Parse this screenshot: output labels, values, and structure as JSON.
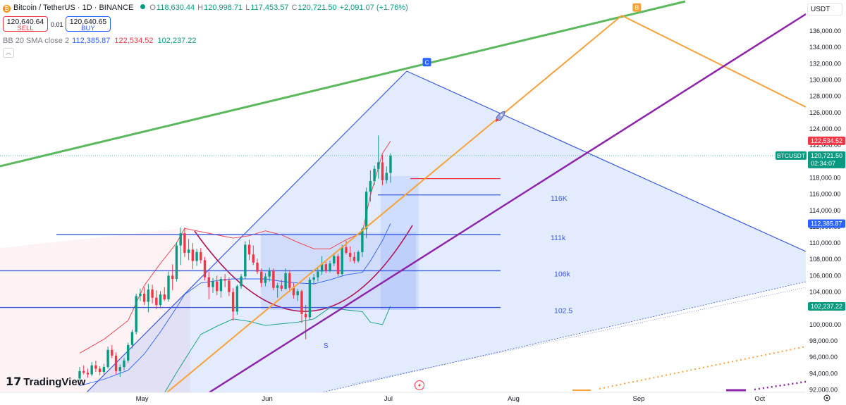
{
  "header": {
    "symbol": "Bitcoin / TetherUS · 1D · BINANCE",
    "coin_glyph": "₿",
    "o_label": "O",
    "o_value": "118,630.44",
    "h_label": "H",
    "h_value": "120,998.71",
    "l_label": "L",
    "l_value": "117,453.57",
    "c_label": "C",
    "c_value": "120,721.50",
    "change": "+2,091.07 (+1.76%)"
  },
  "trade": {
    "sell_price": "120,640.64",
    "sell_label": "SELL",
    "spread": "0.01",
    "buy_price": "120,640.65",
    "buy_label": "BUY"
  },
  "indicator": {
    "name": "BB 20 SMA close 2",
    "basis": "112,385.87",
    "upper": "122,534.52",
    "lower": "102,237.22"
  },
  "currency": "USDT",
  "brand": "TradingView",
  "colors": {
    "up": "#089981",
    "down": "#f23645",
    "blue": "#2962ff",
    "green": "#5cb85c",
    "orange": "#f7a23b",
    "purple": "#8e24aa",
    "navy": "#3b5bdb"
  },
  "chart_data": {
    "type": "candlestick",
    "timeframe": "1D",
    "x_ticks": [
      {
        "label": "May",
        "date": "2025-05-01"
      },
      {
        "label": "Jun",
        "date": "2025-06-01"
      },
      {
        "label": "Jul",
        "date": "2025-07-01"
      },
      {
        "label": "Aug",
        "date": "2025-08-01"
      },
      {
        "label": "Sep",
        "date": "2025-09-01"
      },
      {
        "label": "Oct",
        "date": "2025-10-01"
      }
    ],
    "y_ticks": [
      "92,000.00",
      "94,000.00",
      "96,000.00",
      "98,000.00",
      "100,000.00",
      "102,000.00",
      "104,000.00",
      "106,000.00",
      "108,000.00",
      "110,000.00",
      "112,000.00",
      "114,000.00",
      "116,000.00",
      "118,000.00",
      "120,000.00",
      "122,000.00",
      "124,000.00",
      "126,000.00",
      "128,000.00",
      "130,000.00",
      "132,000.00",
      "134,000.00",
      "136,000.00"
    ],
    "y_range": [
      91700,
      139800
    ],
    "price_labels": [
      {
        "text": "122,534.52",
        "price": 122534.52,
        "color": "#f23645"
      },
      {
        "text": "112,385.87",
        "price": 112385.87,
        "color": "#2962ff"
      },
      {
        "text": "102,237.22",
        "price": 102237.22,
        "color": "#089981"
      }
    ],
    "last_price": {
      "symbol": "BTCUSDT",
      "price_text": "120,721.50",
      "price": 120721.5,
      "countdown": "02:34:07"
    },
    "candles_date_range": [
      "2025-04-22",
      "2025-07-15"
    ],
    "candles": [
      [
        93400,
        94800,
        93100,
        94300
      ],
      [
        94300,
        95000,
        93900,
        94100
      ],
      [
        94100,
        94600,
        93500,
        93900
      ],
      [
        93900,
        95400,
        93700,
        95000
      ],
      [
        95000,
        95600,
        94200,
        94600
      ],
      [
        94600,
        94900,
        93800,
        94200
      ],
      [
        94200,
        95200,
        93900,
        94800
      ],
      [
        94800,
        97300,
        94600,
        96900
      ],
      [
        96900,
        97500,
        95900,
        96200
      ],
      [
        96200,
        96600,
        93900,
        94300
      ],
      [
        94300,
        95100,
        93600,
        94800
      ],
      [
        94800,
        95900,
        94400,
        95600
      ],
      [
        95600,
        97800,
        95300,
        97500
      ],
      [
        97500,
        99400,
        97100,
        99100
      ],
      [
        99100,
        103800,
        98800,
        103500
      ],
      [
        103500,
        104400,
        102900,
        103800
      ],
      [
        103800,
        104600,
        102400,
        102800
      ],
      [
        102800,
        105000,
        101500,
        104300
      ],
      [
        104300,
        104900,
        102600,
        103300
      ],
      [
        103300,
        104200,
        101900,
        102400
      ],
      [
        102400,
        104100,
        102000,
        103700
      ],
      [
        103700,
        104600,
        102900,
        103100
      ],
      [
        103100,
        106500,
        102800,
        106000
      ],
      [
        106000,
        107400,
        104200,
        105600
      ],
      [
        105600,
        110100,
        105300,
        109700
      ],
      [
        109700,
        111900,
        107300,
        111200
      ],
      [
        111200,
        111900,
        108300,
        108800
      ],
      [
        108800,
        110500,
        107900,
        109200
      ],
      [
        109200,
        110000,
        106800,
        107800
      ],
      [
        107800,
        109300,
        107200,
        108900
      ],
      [
        108900,
        109400,
        107500,
        107900
      ],
      [
        107900,
        108300,
        105400,
        105800
      ],
      [
        105800,
        106500,
        103100,
        104600
      ],
      [
        104600,
        105700,
        103900,
        105300
      ],
      [
        105300,
        106000,
        103600,
        104100
      ],
      [
        104100,
        105900,
        103300,
        105600
      ],
      [
        105600,
        106200,
        104600,
        105400
      ],
      [
        105400,
        105800,
        103500,
        104000
      ],
      [
        104000,
        104500,
        100500,
        101600
      ],
      [
        101600,
        104900,
        101200,
        104700
      ],
      [
        104700,
        106200,
        104400,
        105900
      ],
      [
        105900,
        110200,
        105600,
        109800
      ],
      [
        109800,
        110400,
        107900,
        108600
      ],
      [
        108600,
        109700,
        107300,
        107600
      ],
      [
        107600,
        108100,
        106200,
        106500
      ],
      [
        106500,
        106900,
        104600,
        105100
      ],
      [
        105100,
        106300,
        104700,
        105900
      ],
      [
        105900,
        107000,
        105300,
        106600
      ],
      [
        106600,
        106900,
        104200,
        104500
      ],
      [
        104500,
        105100,
        103300,
        104800
      ],
      [
        104800,
        105500,
        104100,
        104400
      ],
      [
        104400,
        106900,
        104300,
        106300
      ],
      [
        106300,
        106700,
        104000,
        104500
      ],
      [
        104500,
        105100,
        103200,
        103600
      ],
      [
        103600,
        104400,
        102900,
        104100
      ],
      [
        104100,
        104300,
        100200,
        101300
      ],
      [
        101300,
        102400,
        98200,
        100900
      ],
      [
        100900,
        105800,
        100600,
        105500
      ],
      [
        105500,
        106200,
        104900,
        105800
      ],
      [
        105800,
        106900,
        105300,
        106500
      ],
      [
        106500,
        108400,
        106100,
        107400
      ],
      [
        107400,
        107700,
        106300,
        106600
      ],
      [
        106600,
        107800,
        106400,
        107500
      ],
      [
        107500,
        108800,
        107200,
        108400
      ],
      [
        108400,
        108700,
        105900,
        106200
      ],
      [
        106200,
        109800,
        106000,
        109500
      ],
      [
        109500,
        110300,
        108600,
        108800
      ],
      [
        108800,
        109600,
        107700,
        108300
      ],
      [
        108300,
        108900,
        107500,
        107800
      ],
      [
        107800,
        109100,
        107600,
        108900
      ],
      [
        108900,
        111900,
        108300,
        111700
      ],
      [
        111700,
        116800,
        110600,
        116300
      ],
      [
        116300,
        118900,
        115100,
        117600
      ],
      [
        117600,
        119500,
        117100,
        119100
      ],
      [
        119100,
        123200,
        117900,
        119900
      ],
      [
        119900,
        120800,
        117100,
        117700
      ],
      [
        117700,
        119400,
        117300,
        118600
      ],
      [
        118600,
        121000,
        117400,
        120700
      ]
    ],
    "bollinger_bands": {
      "length": 20,
      "source": "close",
      "stddev": 2,
      "upper": [
        [
          0,
          96500
        ],
        [
          6,
          98200
        ],
        [
          12,
          100500
        ],
        [
          16,
          104800
        ],
        [
          20,
          107500
        ],
        [
          24,
          110000
        ],
        [
          26,
          111800
        ],
        [
          30,
          111400
        ],
        [
          34,
          111000
        ],
        [
          38,
          110600
        ],
        [
          42,
          110900
        ],
        [
          46,
          111500
        ],
        [
          50,
          111000
        ],
        [
          54,
          110100
        ],
        [
          58,
          109300
        ],
        [
          62,
          109300
        ],
        [
          66,
          110400
        ],
        [
          70,
          111300
        ],
        [
          72,
          115800
        ],
        [
          75,
          121000
        ],
        [
          77,
          122500
        ]
      ],
      "basis": [
        [
          0,
          92500
        ],
        [
          6,
          93300
        ],
        [
          12,
          94400
        ],
        [
          16,
          96400
        ],
        [
          20,
          99100
        ],
        [
          24,
          102100
        ],
        [
          26,
          103700
        ],
        [
          30,
          105100
        ],
        [
          34,
          105400
        ],
        [
          38,
          105600
        ],
        [
          42,
          105600
        ],
        [
          46,
          105600
        ],
        [
          50,
          105300
        ],
        [
          54,
          105100
        ],
        [
          58,
          105000
        ],
        [
          62,
          105500
        ],
        [
          66,
          106100
        ],
        [
          70,
          106400
        ],
        [
          72,
          107800
        ],
        [
          75,
          110300
        ],
        [
          77,
          112400
        ]
      ],
      "lower": [
        [
          0,
          88800
        ],
        [
          6,
          88600
        ],
        [
          12,
          88300
        ],
        [
          16,
          88500
        ],
        [
          20,
          90800
        ],
        [
          24,
          94100
        ],
        [
          26,
          95700
        ],
        [
          30,
          98800
        ],
        [
          34,
          99800
        ],
        [
          38,
          100700
        ],
        [
          42,
          100400
        ],
        [
          46,
          99900
        ],
        [
          50,
          100100
        ],
        [
          54,
          100300
        ],
        [
          58,
          100700
        ],
        [
          62,
          102100
        ],
        [
          66,
          101800
        ],
        [
          70,
          101600
        ],
        [
          72,
          100300
        ],
        [
          75,
          100000
        ],
        [
          77,
          102300
        ]
      ]
    },
    "drawings": {
      "horizontal_lines": [
        {
          "label": "116K",
          "price": 115900
        },
        {
          "label": "111k",
          "price": 111050
        },
        {
          "label": "106k",
          "price": 106600
        },
        {
          "label": "102.5",
          "price": 102100
        },
        {
          "label": "",
          "price": 117900,
          "color": "#f23645"
        }
      ],
      "pattern_points": [
        {
          "label": "C",
          "date": "2025-07-17",
          "price": 131400
        },
        {
          "label": "B",
          "date": "2025-09-07",
          "price": 138100
        },
        {
          "label": "S",
          "date": "2025-06-22",
          "price": 97500
        }
      ]
    }
  }
}
